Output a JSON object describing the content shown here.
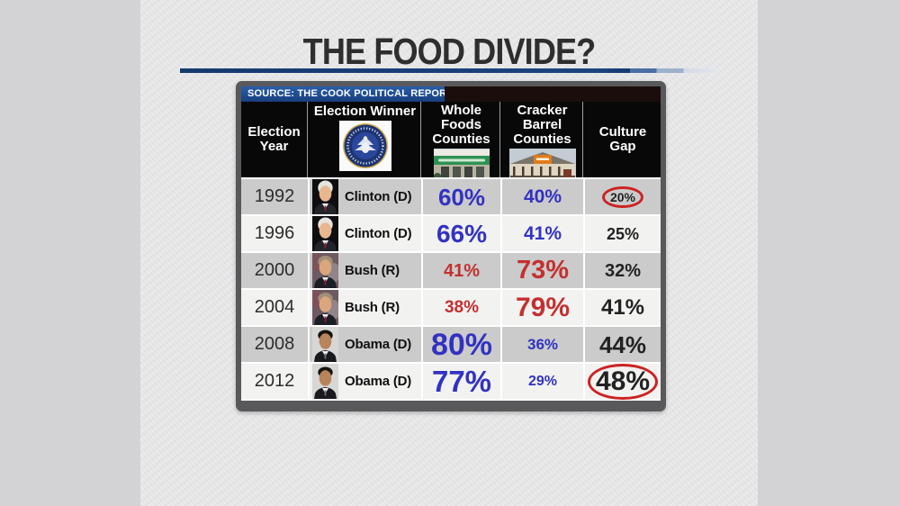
{
  "title": "THE FOOD DIVIDE?",
  "source": "SOURCE:  THE COOK POLITICAL REPORT",
  "table": {
    "header": {
      "year": [
        "Election",
        "Year"
      ],
      "winner": [
        "Election Winner"
      ],
      "whole_foods": [
        "Whole Foods",
        "Counties"
      ],
      "cracker_barrel": [
        "Cracker Barrel",
        "Counties"
      ],
      "gap": [
        "Culture",
        "Gap"
      ]
    },
    "icons": {
      "winner": "presidential-seal-image",
      "whole_foods": "whole-foods-storefront-image",
      "cracker_barrel": "cracker-barrel-storefront-image"
    },
    "rows": [
      {
        "year": "1992",
        "winner": "Clinton (D)",
        "portrait": "clinton",
        "party": "dem",
        "whole_foods": {
          "value": "60%",
          "size": 26
        },
        "cracker_barrel": {
          "value": "40%",
          "size": 21
        },
        "gap": {
          "value": "20%",
          "size": 14,
          "circled": true
        }
      },
      {
        "year": "1996",
        "winner": "Clinton (D)",
        "portrait": "clinton",
        "party": "dem",
        "whole_foods": {
          "value": "66%",
          "size": 28
        },
        "cracker_barrel": {
          "value": "41%",
          "size": 21
        },
        "gap": {
          "value": "25%",
          "size": 18,
          "circled": false
        }
      },
      {
        "year": "2000",
        "winner": "Bush (R)",
        "portrait": "bush",
        "party": "rep",
        "whole_foods": {
          "value": "41%",
          "size": 20
        },
        "cracker_barrel": {
          "value": "73%",
          "size": 29
        },
        "gap": {
          "value": "32%",
          "size": 20,
          "circled": false
        }
      },
      {
        "year": "2004",
        "winner": "Bush (R)",
        "portrait": "bush",
        "party": "rep",
        "whole_foods": {
          "value": "38%",
          "size": 19
        },
        "cracker_barrel": {
          "value": "79%",
          "size": 30
        },
        "gap": {
          "value": "41%",
          "size": 24,
          "circled": false
        }
      },
      {
        "year": "2008",
        "winner": "Obama (D)",
        "portrait": "obama",
        "party": "dem",
        "whole_foods": {
          "value": "80%",
          "size": 34
        },
        "cracker_barrel": {
          "value": "36%",
          "size": 17
        },
        "gap": {
          "value": "44%",
          "size": 26,
          "circled": false
        }
      },
      {
        "year": "2012",
        "winner": "Obama (D)",
        "portrait": "obama",
        "party": "dem",
        "whole_foods": {
          "value": "77%",
          "size": 33
        },
        "cracker_barrel": {
          "value": "29%",
          "size": 16
        },
        "gap": {
          "value": "48%",
          "size": 30,
          "circled": true
        }
      }
    ]
  },
  "colors": {
    "dem": "#3232c2",
    "rep": "#c33030",
    "gap_text": "#222222",
    "circle": "#cc2222",
    "rule_navy": "#16396e"
  },
  "chart_data": {
    "type": "table",
    "title": "THE FOOD DIVIDE?",
    "source": "SOURCE: THE COOK POLITICAL REPORT",
    "columns": [
      "Election Year",
      "Election Winner",
      "Whole Foods Counties",
      "Cracker Barrel Counties",
      "Culture Gap"
    ],
    "rows": [
      [
        "1992",
        "Clinton (D)",
        "60%",
        "40%",
        "20%"
      ],
      [
        "1996",
        "Clinton (D)",
        "66%",
        "41%",
        "25%"
      ],
      [
        "2000",
        "Bush (R)",
        "41%",
        "73%",
        "32%"
      ],
      [
        "2004",
        "Bush (R)",
        "38%",
        "79%",
        "41%"
      ],
      [
        "2008",
        "Obama (D)",
        "80%",
        "36%",
        "44%"
      ],
      [
        "2012",
        "Obama (D)",
        "77%",
        "29%",
        "48%"
      ]
    ],
    "annotations": [
      "1992 Culture Gap value 20% circled in red",
      "2012 Culture Gap value 48% circled in red",
      "Democratic-won rows shown in blue, Republican-won rows shown in red",
      "Numeral size scales with percentage magnitude"
    ]
  }
}
